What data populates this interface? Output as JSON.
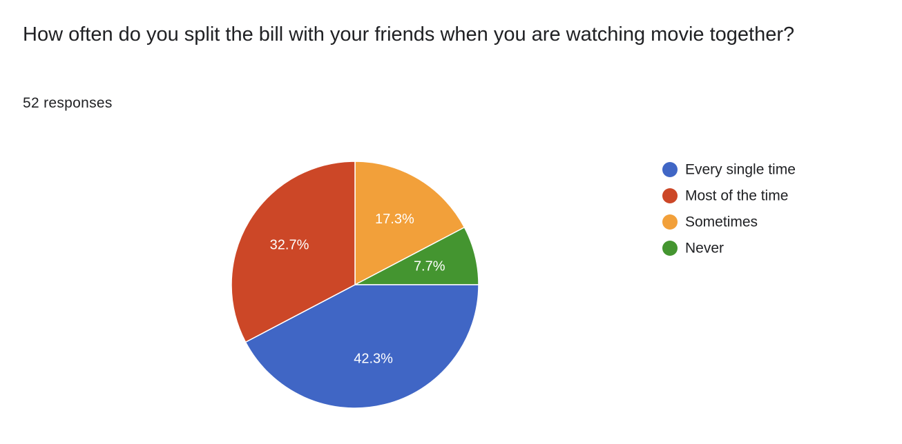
{
  "question": {
    "title": "How often do you split the bill with your friends when you are watching movie together?",
    "responses": "52 responses"
  },
  "chart_data": {
    "type": "pie",
    "title": "",
    "categories": [
      "Every single time",
      "Most of the time",
      "Sometimes",
      "Never"
    ],
    "values": [
      42.3,
      32.7,
      17.3,
      7.7
    ],
    "labels": [
      "42.3%",
      "32.7%",
      "17.3%",
      "7.7%"
    ],
    "colors": [
      "#4066c5",
      "#cc4727",
      "#f2a03a",
      "#449530"
    ],
    "legend_position": "right"
  }
}
